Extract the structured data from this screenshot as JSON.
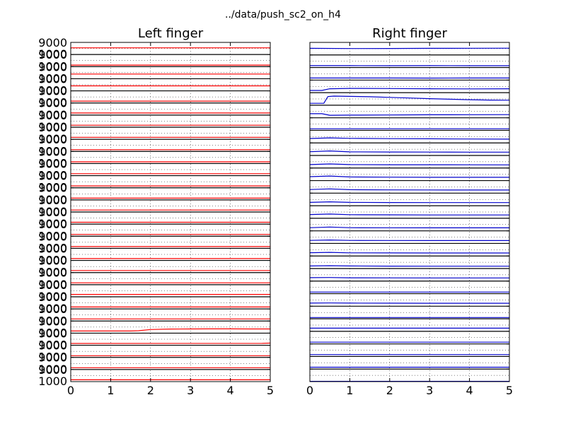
{
  "chart_data": {
    "type": "line",
    "suptitle": "../data/push_sc2_on_h4",
    "xlim": [
      0,
      5
    ],
    "xticks": [
      "0",
      "1",
      "2",
      "3",
      "4",
      "5"
    ],
    "ylim": [
      1000,
      9000
    ],
    "left_yticks": [
      "9000",
      "1000"
    ],
    "grid": true,
    "panels": [
      {
        "title": "Left finger",
        "color": "#ff0000",
        "series": [
          {
            "x": [
              0,
              5
            ],
            "y": [
              5400,
              5400
            ]
          },
          {
            "x": [
              0,
              5
            ],
            "y": [
              2000,
              2000
            ]
          },
          {
            "x": [
              0,
              5
            ],
            "y": [
              4100,
              4100
            ]
          },
          {
            "x": [
              0,
              5
            ],
            "y": [
              4300,
              4300
            ]
          },
          {
            "x": [
              0,
              5
            ],
            "y": [
              2200,
              2200
            ]
          },
          {
            "x": [
              0,
              5
            ],
            "y": [
              2400,
              2400
            ]
          },
          {
            "x": [
              0,
              5
            ],
            "y": [
              2300,
              2300
            ]
          },
          {
            "x": [
              0,
              5
            ],
            "y": [
              2350,
              2350
            ]
          },
          {
            "x": [
              0,
              5
            ],
            "y": [
              2150,
              2150
            ]
          },
          {
            "x": [
              0,
              5
            ],
            "y": [
              2150,
              2150
            ]
          },
          {
            "x": [
              0,
              5
            ],
            "y": [
              2300,
              2300
            ]
          },
          {
            "x": [
              0,
              5
            ],
            "y": [
              2200,
              2200
            ]
          },
          {
            "x": [
              0,
              5
            ],
            "y": [
              2150,
              2150
            ]
          },
          {
            "x": [
              0,
              5
            ],
            "y": [
              2300,
              2300
            ]
          },
          {
            "x": [
              0,
              5
            ],
            "y": [
              2250,
              2250
            ]
          },
          {
            "x": [
              0,
              5
            ],
            "y": [
              2200,
              2200
            ]
          },
          {
            "x": [
              0,
              5
            ],
            "y": [
              2200,
              2200
            ]
          },
          {
            "x": [
              0,
              5
            ],
            "y": [
              2250,
              2250
            ]
          },
          {
            "x": [
              0,
              5
            ],
            "y": [
              2350,
              2350
            ]
          },
          {
            "x": [
              0,
              5
            ],
            "y": [
              2250,
              2250
            ]
          },
          {
            "x": [
              0,
              5
            ],
            "y": [
              2600,
              2600
            ]
          },
          {
            "x": [
              0,
              5
            ],
            "y": [
              2300,
              2300
            ]
          },
          {
            "x": [
              0,
              5
            ],
            "y": [
              2400,
              2400
            ]
          },
          {
            "x": [
              0,
              1.5,
              1.7,
              2,
              2.5,
              3,
              3.5,
              4,
              4.5,
              5
            ],
            "y": [
              2400,
              2400,
              2600,
              3400,
              3700,
              3750,
              3800,
              3800,
              3750,
              3750
            ]
          },
          {
            "x": [
              0,
              4.8,
              5
            ],
            "y": [
              2200,
              2250,
              2450
            ]
          },
          {
            "x": [
              0,
              5
            ],
            "y": [
              2150,
              2150
            ]
          },
          {
            "x": [
              0,
              5
            ],
            "y": [
              2200,
              2200
            ]
          },
          {
            "x": [
              0,
              5
            ],
            "y": [
              2200,
              2200
            ]
          }
        ]
      },
      {
        "title": "Right finger",
        "color": "#0000cc",
        "series": [
          {
            "x": [
              0,
              1,
              2,
              3,
              4,
              5
            ],
            "y": [
              5200,
              5100,
              5150,
              5200,
              5250,
              5300
            ]
          },
          {
            "x": [
              0,
              1,
              2,
              3,
              4,
              5
            ],
            "y": [
              2200,
              2180,
              2170,
              2180,
              2160,
              2150
            ]
          },
          {
            "x": [
              0,
              1,
              2,
              3,
              4,
              5
            ],
            "y": [
              2300,
              2320,
              2310,
              2290,
              2300,
              2300
            ]
          },
          {
            "x": [
              0,
              0.3,
              0.5,
              1,
              2,
              3,
              4,
              5
            ],
            "y": [
              2400,
              2400,
              3500,
              3700,
              3600,
              3500,
              3400,
              3500
            ]
          },
          {
            "x": [
              0,
              0.35,
              0.45,
              0.6,
              1,
              1.5,
              2,
              2.5,
              3,
              3.5,
              4,
              4.5,
              5
            ],
            "y": [
              2200,
              2200,
              6500,
              6800,
              6600,
              6400,
              6000,
              5600,
              5200,
              4800,
              4500,
              4300,
              4200
            ]
          },
          {
            "x": [
              0,
              0.3,
              0.5,
              1,
              2,
              3,
              4,
              5
            ],
            "y": [
              3600,
              3600,
              2600,
              2700,
              2800,
              2900,
              2950,
              3000
            ]
          },
          {
            "x": [
              0,
              5
            ],
            "y": [
              2000,
              2000
            ]
          },
          {
            "x": [
              0,
              0.5,
              1,
              2,
              3,
              4,
              5
            ],
            "y": [
              3800,
              4200,
              3900,
              3700,
              3600,
              3500,
              3400
            ]
          },
          {
            "x": [
              0,
              0.5,
              1,
              2,
              3,
              4,
              5
            ],
            "y": [
              3400,
              3900,
              3300,
              3200,
              3150,
              3100,
              3100
            ]
          },
          {
            "x": [
              0,
              0.5,
              1,
              2,
              3,
              4,
              5
            ],
            "y": [
              3200,
              3600,
              3200,
              3100,
              3100,
              3050,
              3000
            ]
          },
          {
            "x": [
              0,
              0.5,
              1,
              2,
              3,
              4,
              5
            ],
            "y": [
              3500,
              3900,
              3300,
              3200,
              3100,
              3100,
              3100
            ]
          },
          {
            "x": [
              0,
              0.5,
              1,
              2,
              3,
              4,
              5
            ],
            "y": [
              3300,
              3700,
              3200,
              3100,
              3050,
              3000,
              3000
            ]
          },
          {
            "x": [
              0,
              0.5,
              1,
              2,
              3,
              4,
              5
            ],
            "y": [
              3100,
              3500,
              3100,
              3050,
              3000,
              3000,
              3000
            ]
          },
          {
            "x": [
              0,
              0.5,
              1,
              2,
              3,
              4,
              5
            ],
            "y": [
              3400,
              3700,
              3300,
              3200,
              3100,
              3100,
              3100
            ]
          },
          {
            "x": [
              0,
              0.5,
              1,
              2,
              3,
              4,
              5
            ],
            "y": [
              3000,
              3400,
              3000,
              2950,
              2900,
              2900,
              2900
            ]
          },
          {
            "x": [
              0,
              0.5,
              1,
              2,
              3,
              4,
              5
            ],
            "y": [
              2900,
              3200,
              2900,
              2850,
              2800,
              2800,
              2800
            ]
          },
          {
            "x": [
              0,
              0.5,
              1,
              2,
              3,
              4,
              5
            ],
            "y": [
              3100,
              3300,
              3000,
              2950,
              2900,
              2900,
              2900
            ]
          },
          {
            "x": [
              0,
              0.5,
              1,
              2,
              3,
              4,
              5
            ],
            "y": [
              2600,
              2800,
              2600,
              2550,
              2500,
              2500,
              2500
            ]
          },
          {
            "x": [
              0,
              0.5,
              1,
              2,
              3,
              4,
              5
            ],
            "y": [
              3200,
              3300,
              3100,
              3050,
              3000,
              3000,
              3000
            ]
          },
          {
            "x": [
              0,
              5
            ],
            "y": [
              2000,
              2000
            ]
          },
          {
            "x": [
              0,
              0.5,
              1,
              2,
              3,
              4,
              5
            ],
            "y": [
              3000,
              3100,
              3000,
              2950,
              2900,
              2900,
              2900
            ]
          },
          {
            "x": [
              0,
              5
            ],
            "y": [
              1800,
              1800
            ]
          },
          {
            "x": [
              0,
              5
            ],
            "y": [
              3000,
              3000
            ]
          },
          {
            "x": [
              0,
              5
            ],
            "y": [
              2100,
              2100
            ]
          },
          {
            "x": [
              0,
              5
            ],
            "y": [
              2200,
              2200
            ]
          },
          {
            "x": [
              0,
              5
            ],
            "y": [
              2200,
              2200
            ]
          },
          {
            "x": [
              0,
              5
            ],
            "y": [
              1200,
              1200
            ]
          }
        ]
      }
    ]
  }
}
